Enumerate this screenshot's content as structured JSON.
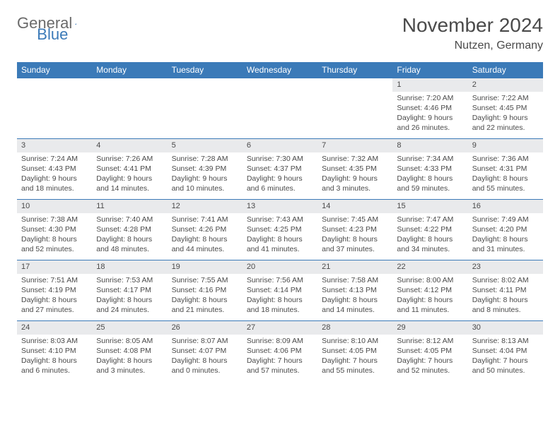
{
  "logo": {
    "text1": "General",
    "text2": "Blue"
  },
  "title": "November 2024",
  "location": "Nutzen, Germany",
  "colors": {
    "header_bg": "#3b7ab8",
    "header_text": "#ffffff",
    "daynum_bg": "#e9eaec",
    "border": "#3b7ab8",
    "text": "#4a4a4a",
    "page_bg": "#ffffff"
  },
  "font": {
    "title_size": 28,
    "location_size": 16,
    "header_size": 12,
    "daynum_size": 11,
    "body_size": 10.5
  },
  "weekdays": [
    "Sunday",
    "Monday",
    "Tuesday",
    "Wednesday",
    "Thursday",
    "Friday",
    "Saturday"
  ],
  "weeks": [
    [
      {
        "day": "",
        "sunrise": "",
        "sunset": "",
        "daylight": ""
      },
      {
        "day": "",
        "sunrise": "",
        "sunset": "",
        "daylight": ""
      },
      {
        "day": "",
        "sunrise": "",
        "sunset": "",
        "daylight": ""
      },
      {
        "day": "",
        "sunrise": "",
        "sunset": "",
        "daylight": ""
      },
      {
        "day": "",
        "sunrise": "",
        "sunset": "",
        "daylight": ""
      },
      {
        "day": "1",
        "sunrise": "Sunrise: 7:20 AM",
        "sunset": "Sunset: 4:46 PM",
        "daylight": "Daylight: 9 hours and 26 minutes."
      },
      {
        "day": "2",
        "sunrise": "Sunrise: 7:22 AM",
        "sunset": "Sunset: 4:45 PM",
        "daylight": "Daylight: 9 hours and 22 minutes."
      }
    ],
    [
      {
        "day": "3",
        "sunrise": "Sunrise: 7:24 AM",
        "sunset": "Sunset: 4:43 PM",
        "daylight": "Daylight: 9 hours and 18 minutes."
      },
      {
        "day": "4",
        "sunrise": "Sunrise: 7:26 AM",
        "sunset": "Sunset: 4:41 PM",
        "daylight": "Daylight: 9 hours and 14 minutes."
      },
      {
        "day": "5",
        "sunrise": "Sunrise: 7:28 AM",
        "sunset": "Sunset: 4:39 PM",
        "daylight": "Daylight: 9 hours and 10 minutes."
      },
      {
        "day": "6",
        "sunrise": "Sunrise: 7:30 AM",
        "sunset": "Sunset: 4:37 PM",
        "daylight": "Daylight: 9 hours and 6 minutes."
      },
      {
        "day": "7",
        "sunrise": "Sunrise: 7:32 AM",
        "sunset": "Sunset: 4:35 PM",
        "daylight": "Daylight: 9 hours and 3 minutes."
      },
      {
        "day": "8",
        "sunrise": "Sunrise: 7:34 AM",
        "sunset": "Sunset: 4:33 PM",
        "daylight": "Daylight: 8 hours and 59 minutes."
      },
      {
        "day": "9",
        "sunrise": "Sunrise: 7:36 AM",
        "sunset": "Sunset: 4:31 PM",
        "daylight": "Daylight: 8 hours and 55 minutes."
      }
    ],
    [
      {
        "day": "10",
        "sunrise": "Sunrise: 7:38 AM",
        "sunset": "Sunset: 4:30 PM",
        "daylight": "Daylight: 8 hours and 52 minutes."
      },
      {
        "day": "11",
        "sunrise": "Sunrise: 7:40 AM",
        "sunset": "Sunset: 4:28 PM",
        "daylight": "Daylight: 8 hours and 48 minutes."
      },
      {
        "day": "12",
        "sunrise": "Sunrise: 7:41 AM",
        "sunset": "Sunset: 4:26 PM",
        "daylight": "Daylight: 8 hours and 44 minutes."
      },
      {
        "day": "13",
        "sunrise": "Sunrise: 7:43 AM",
        "sunset": "Sunset: 4:25 PM",
        "daylight": "Daylight: 8 hours and 41 minutes."
      },
      {
        "day": "14",
        "sunrise": "Sunrise: 7:45 AM",
        "sunset": "Sunset: 4:23 PM",
        "daylight": "Daylight: 8 hours and 37 minutes."
      },
      {
        "day": "15",
        "sunrise": "Sunrise: 7:47 AM",
        "sunset": "Sunset: 4:22 PM",
        "daylight": "Daylight: 8 hours and 34 minutes."
      },
      {
        "day": "16",
        "sunrise": "Sunrise: 7:49 AM",
        "sunset": "Sunset: 4:20 PM",
        "daylight": "Daylight: 8 hours and 31 minutes."
      }
    ],
    [
      {
        "day": "17",
        "sunrise": "Sunrise: 7:51 AM",
        "sunset": "Sunset: 4:19 PM",
        "daylight": "Daylight: 8 hours and 27 minutes."
      },
      {
        "day": "18",
        "sunrise": "Sunrise: 7:53 AM",
        "sunset": "Sunset: 4:17 PM",
        "daylight": "Daylight: 8 hours and 24 minutes."
      },
      {
        "day": "19",
        "sunrise": "Sunrise: 7:55 AM",
        "sunset": "Sunset: 4:16 PM",
        "daylight": "Daylight: 8 hours and 21 minutes."
      },
      {
        "day": "20",
        "sunrise": "Sunrise: 7:56 AM",
        "sunset": "Sunset: 4:14 PM",
        "daylight": "Daylight: 8 hours and 18 minutes."
      },
      {
        "day": "21",
        "sunrise": "Sunrise: 7:58 AM",
        "sunset": "Sunset: 4:13 PM",
        "daylight": "Daylight: 8 hours and 14 minutes."
      },
      {
        "day": "22",
        "sunrise": "Sunrise: 8:00 AM",
        "sunset": "Sunset: 4:12 PM",
        "daylight": "Daylight: 8 hours and 11 minutes."
      },
      {
        "day": "23",
        "sunrise": "Sunrise: 8:02 AM",
        "sunset": "Sunset: 4:11 PM",
        "daylight": "Daylight: 8 hours and 8 minutes."
      }
    ],
    [
      {
        "day": "24",
        "sunrise": "Sunrise: 8:03 AM",
        "sunset": "Sunset: 4:10 PM",
        "daylight": "Daylight: 8 hours and 6 minutes."
      },
      {
        "day": "25",
        "sunrise": "Sunrise: 8:05 AM",
        "sunset": "Sunset: 4:08 PM",
        "daylight": "Daylight: 8 hours and 3 minutes."
      },
      {
        "day": "26",
        "sunrise": "Sunrise: 8:07 AM",
        "sunset": "Sunset: 4:07 PM",
        "daylight": "Daylight: 8 hours and 0 minutes."
      },
      {
        "day": "27",
        "sunrise": "Sunrise: 8:09 AM",
        "sunset": "Sunset: 4:06 PM",
        "daylight": "Daylight: 7 hours and 57 minutes."
      },
      {
        "day": "28",
        "sunrise": "Sunrise: 8:10 AM",
        "sunset": "Sunset: 4:05 PM",
        "daylight": "Daylight: 7 hours and 55 minutes."
      },
      {
        "day": "29",
        "sunrise": "Sunrise: 8:12 AM",
        "sunset": "Sunset: 4:05 PM",
        "daylight": "Daylight: 7 hours and 52 minutes."
      },
      {
        "day": "30",
        "sunrise": "Sunrise: 8:13 AM",
        "sunset": "Sunset: 4:04 PM",
        "daylight": "Daylight: 7 hours and 50 minutes."
      }
    ]
  ]
}
